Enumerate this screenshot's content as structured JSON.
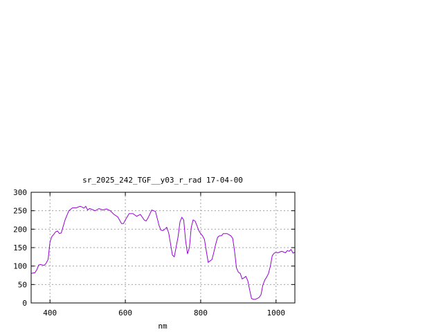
{
  "chart_data": {
    "type": "line",
    "title": "sr_2025_242_TGF__y03_r_rad 17-04-00",
    "xlabel": "nm",
    "ylabel": "",
    "xlim": [
      350,
      1050
    ],
    "ylim": [
      0,
      300
    ],
    "x_ticks": [
      400,
      600,
      800,
      1000
    ],
    "y_ticks": [
      0,
      50,
      100,
      150,
      200,
      250,
      300
    ],
    "grid": true,
    "series_color": "#9400d3",
    "series": [
      {
        "x": [
          350,
          360,
          365,
          370,
          375,
          380,
          385,
          390,
          395,
          400,
          405,
          410,
          415,
          420,
          425,
          430,
          440,
          450,
          460,
          470,
          480,
          485,
          490,
          495,
          500,
          505,
          510,
          520,
          530,
          540,
          550,
          560,
          570,
          580,
          590,
          595,
          600,
          610,
          620,
          630,
          640,
          650,
          655,
          660,
          670,
          680,
          690,
          695,
          700,
          705,
          710,
          715,
          720,
          725,
          730,
          740,
          745,
          750,
          755,
          760,
          765,
          770,
          775,
          780,
          785,
          790,
          795,
          800,
          805,
          810,
          815,
          820,
          830,
          835,
          840,
          845,
          850,
          855,
          860,
          865,
          870,
          875,
          880,
          885,
          890,
          895,
          900,
          905,
          910,
          915,
          920,
          925,
          930,
          935,
          940,
          945,
          950,
          955,
          960,
          965,
          970,
          975,
          980,
          985,
          990,
          995,
          1000,
          1005,
          1010,
          1015,
          1020,
          1025,
          1030,
          1035,
          1040,
          1045,
          1050
        ],
        "y": [
          80,
          82,
          90,
          103,
          104,
          103,
          102,
          108,
          118,
          165,
          180,
          186,
          193,
          195,
          188,
          190,
          225,
          250,
          258,
          258,
          262,
          260,
          257,
          262,
          252,
          256,
          254,
          250,
          256,
          252,
          255,
          250,
          240,
          233,
          215,
          215,
          225,
          242,
          242,
          235,
          240,
          225,
          222,
          230,
          252,
          248,
          208,
          197,
          196,
          200,
          205,
          190,
          160,
          130,
          125,
          180,
          220,
          232,
          225,
          168,
          133,
          150,
          205,
          225,
          222,
          210,
          196,
          188,
          182,
          172,
          140,
          110,
          118,
          138,
          160,
          178,
          182,
          182,
          188,
          188,
          188,
          185,
          182,
          175,
          140,
          95,
          83,
          80,
          65,
          68,
          72,
          60,
          35,
          12,
          10,
          10,
          12,
          15,
          22,
          48,
          62,
          70,
          80,
          100,
          128,
          135,
          137,
          136,
          138,
          140,
          138,
          136,
          142,
          140,
          145,
          135,
          138
        ]
      }
    ]
  }
}
